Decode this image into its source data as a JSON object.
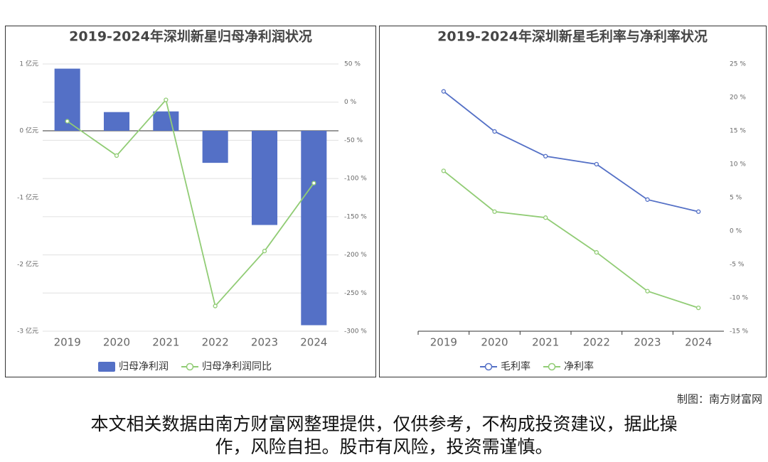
{
  "chart_data": [
    {
      "type": "bar",
      "title": "2019-2024年深圳新星归母净利润状况",
      "categories": [
        "2019",
        "2020",
        "2021",
        "2022",
        "2023",
        "2024"
      ],
      "series": [
        {
          "name": "归母净利润",
          "type": "bar",
          "color": "#5470c6",
          "values": [
            0.93,
            0.28,
            0.29,
            -0.48,
            -1.41,
            -2.91
          ]
        },
        {
          "name": "归母净利润同比",
          "type": "line",
          "axis": "y2",
          "color": "#91cc75",
          "values": [
            -25,
            -70,
            3,
            -267,
            -195,
            -106
          ]
        }
      ],
      "ylim": [
        -3,
        1
      ],
      "yticks": [
        {
          "value": 1,
          "label": "1 亿元"
        },
        {
          "value": 0,
          "label": "0 亿元"
        },
        {
          "value": -1,
          "label": "-1 亿元"
        },
        {
          "value": -2,
          "label": "-2 亿元"
        },
        {
          "value": -3,
          "label": "-3 亿元"
        }
      ],
      "y2lim": [
        -300,
        50
      ],
      "y2ticks": [
        {
          "value": 50,
          "label": "50 %"
        },
        {
          "value": 0,
          "label": "0 %"
        },
        {
          "value": -50,
          "label": "-50 %"
        },
        {
          "value": -100,
          "label": "-100 %"
        },
        {
          "value": -150,
          "label": "-150 %"
        },
        {
          "value": -200,
          "label": "-200 %"
        },
        {
          "value": -250,
          "label": "-250 %"
        },
        {
          "value": -300,
          "label": "-300 %"
        }
      ],
      "grid": true
    },
    {
      "type": "line",
      "title": "2019-2024年深圳新星毛利率与净利率状况",
      "categories": [
        "2019",
        "2020",
        "2021",
        "2022",
        "2023",
        "2024"
      ],
      "series": [
        {
          "name": "毛利率",
          "type": "line",
          "axis": "y2",
          "color": "#5470c6",
          "values": [
            20.9,
            14.9,
            11.2,
            10.0,
            4.7,
            2.9
          ]
        },
        {
          "name": "净利率",
          "type": "line",
          "axis": "y2",
          "color": "#91cc75",
          "values": [
            9.0,
            2.9,
            2.0,
            -3.2,
            -9.0,
            -11.5
          ]
        }
      ],
      "y2lim": [
        -15,
        25
      ],
      "y2ticks": [
        {
          "value": 25,
          "label": "25 %"
        },
        {
          "value": 20,
          "label": "20 %"
        },
        {
          "value": 15,
          "label": "15 %"
        },
        {
          "value": 10,
          "label": "10 %"
        },
        {
          "value": 5,
          "label": "5 %"
        },
        {
          "value": 0,
          "label": "0 %"
        },
        {
          "value": -5,
          "label": "-5 %"
        },
        {
          "value": -10,
          "label": "-10 %"
        },
        {
          "value": -15,
          "label": "-15 %"
        }
      ],
      "grid": false
    }
  ],
  "credit": "制图：南方财富网",
  "disclaimer": [
    "本文相关数据由南方财富网整理提供，仅供参考，不构成投资建议，据此操",
    "作，风险自担。股市有风险，投资需谨慎。"
  ]
}
